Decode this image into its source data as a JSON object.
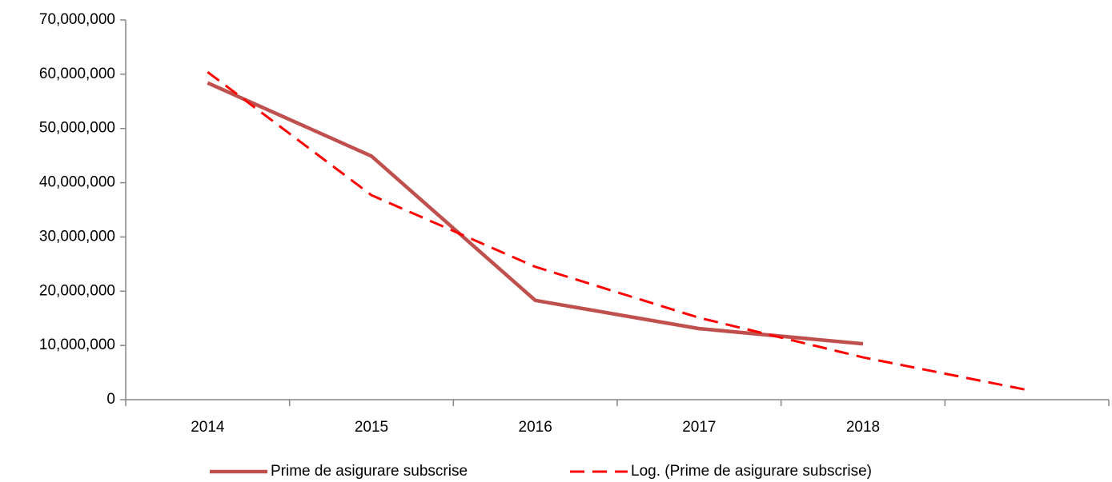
{
  "chart_data": {
    "type": "line",
    "categories": [
      "2014",
      "2015",
      "2016",
      "2017",
      "2018",
      null
    ],
    "series": [
      {
        "name": "Prime de asigurare subscrise",
        "color": "#c0504d",
        "line_style": "solid",
        "values": [
          58400000,
          44900000,
          18300000,
          13100000,
          10300000,
          null
        ]
      },
      {
        "name": "Log. (Prime de asigurare subscrise)",
        "color": "#ff0000",
        "line_style": "dashed",
        "values": [
          60400000,
          37700000,
          24500000,
          15100000,
          7800000,
          1800000
        ]
      }
    ],
    "ylim": [
      0,
      70000000
    ],
    "yticks": [
      0,
      {
        "value": 10000000,
        "label": "10,000,000"
      },
      {
        "value": 20000000,
        "label": "20,000,000"
      },
      {
        "value": 30000000,
        "label": "30,000,000"
      },
      {
        "value": 40000000,
        "label": "40,000,000"
      },
      {
        "value": 50000000,
        "label": "50,000,000"
      },
      {
        "value": 60000000,
        "label": "60,000,000"
      },
      {
        "value": 70000000,
        "label": "70,000,000"
      }
    ],
    "grid": false,
    "legend": "bottom"
  }
}
